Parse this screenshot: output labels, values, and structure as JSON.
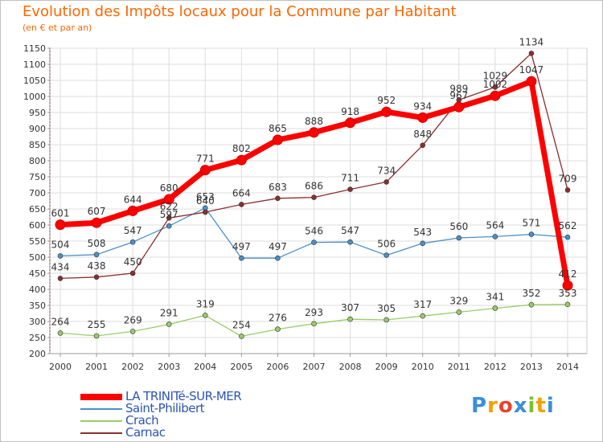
{
  "header": {
    "title": "Evolution des Impôts locaux pour la Commune par Habitant",
    "subtitle": "(en € et par an)"
  },
  "logo": {
    "text": "Proxiti",
    "letters": [
      "P",
      "r",
      "o",
      "x",
      "i",
      "t",
      "i"
    ],
    "colors": [
      "#3a8fd9",
      "#f2a000",
      "#e8452c",
      "#3a8fd9",
      "#7fbf2a",
      "#f2a000",
      "#3a8fd9"
    ]
  },
  "chart_data": {
    "type": "line",
    "title": "Evolution des Impôts locaux pour la Commune par Habitant",
    "subtitle": "(en € et par an)",
    "xlabel": "",
    "ylabel": "",
    "x": [
      "2000",
      "2001",
      "2002",
      "2003",
      "2004",
      "2005",
      "2006",
      "2007",
      "2008",
      "2009",
      "2010",
      "2011",
      "2012",
      "2013",
      "2014"
    ],
    "ylim": [
      200,
      1150
    ],
    "yticks": [
      200,
      250,
      300,
      350,
      400,
      450,
      500,
      550,
      600,
      650,
      700,
      750,
      800,
      850,
      900,
      950,
      1000,
      1050,
      1100,
      1150
    ],
    "grid": true,
    "legend_position": "bottom-left",
    "series": [
      {
        "name": "LA TRINITé-SUR-MER",
        "color": "#ff0000",
        "values": [
          601,
          607,
          644,
          680,
          771,
          802,
          865,
          888,
          918,
          952,
          934,
          967,
          1002,
          1047,
          412
        ]
      },
      {
        "name": "Saint-Philibert",
        "color": "#4a90c8",
        "values": [
          504,
          508,
          547,
          597,
          653,
          497,
          497,
          546,
          547,
          506,
          543,
          560,
          564,
          571,
          562
        ]
      },
      {
        "name": "Crach",
        "color": "#99cc66",
        "values": [
          264,
          255,
          269,
          291,
          319,
          254,
          276,
          293,
          307,
          305,
          317,
          329,
          341,
          352,
          353
        ]
      },
      {
        "name": "Carnac",
        "color": "#8b2e2e",
        "values": [
          434,
          438,
          450,
          622,
          640,
          664,
          683,
          686,
          711,
          734,
          848,
          989,
          1029,
          1134,
          709
        ]
      }
    ]
  }
}
